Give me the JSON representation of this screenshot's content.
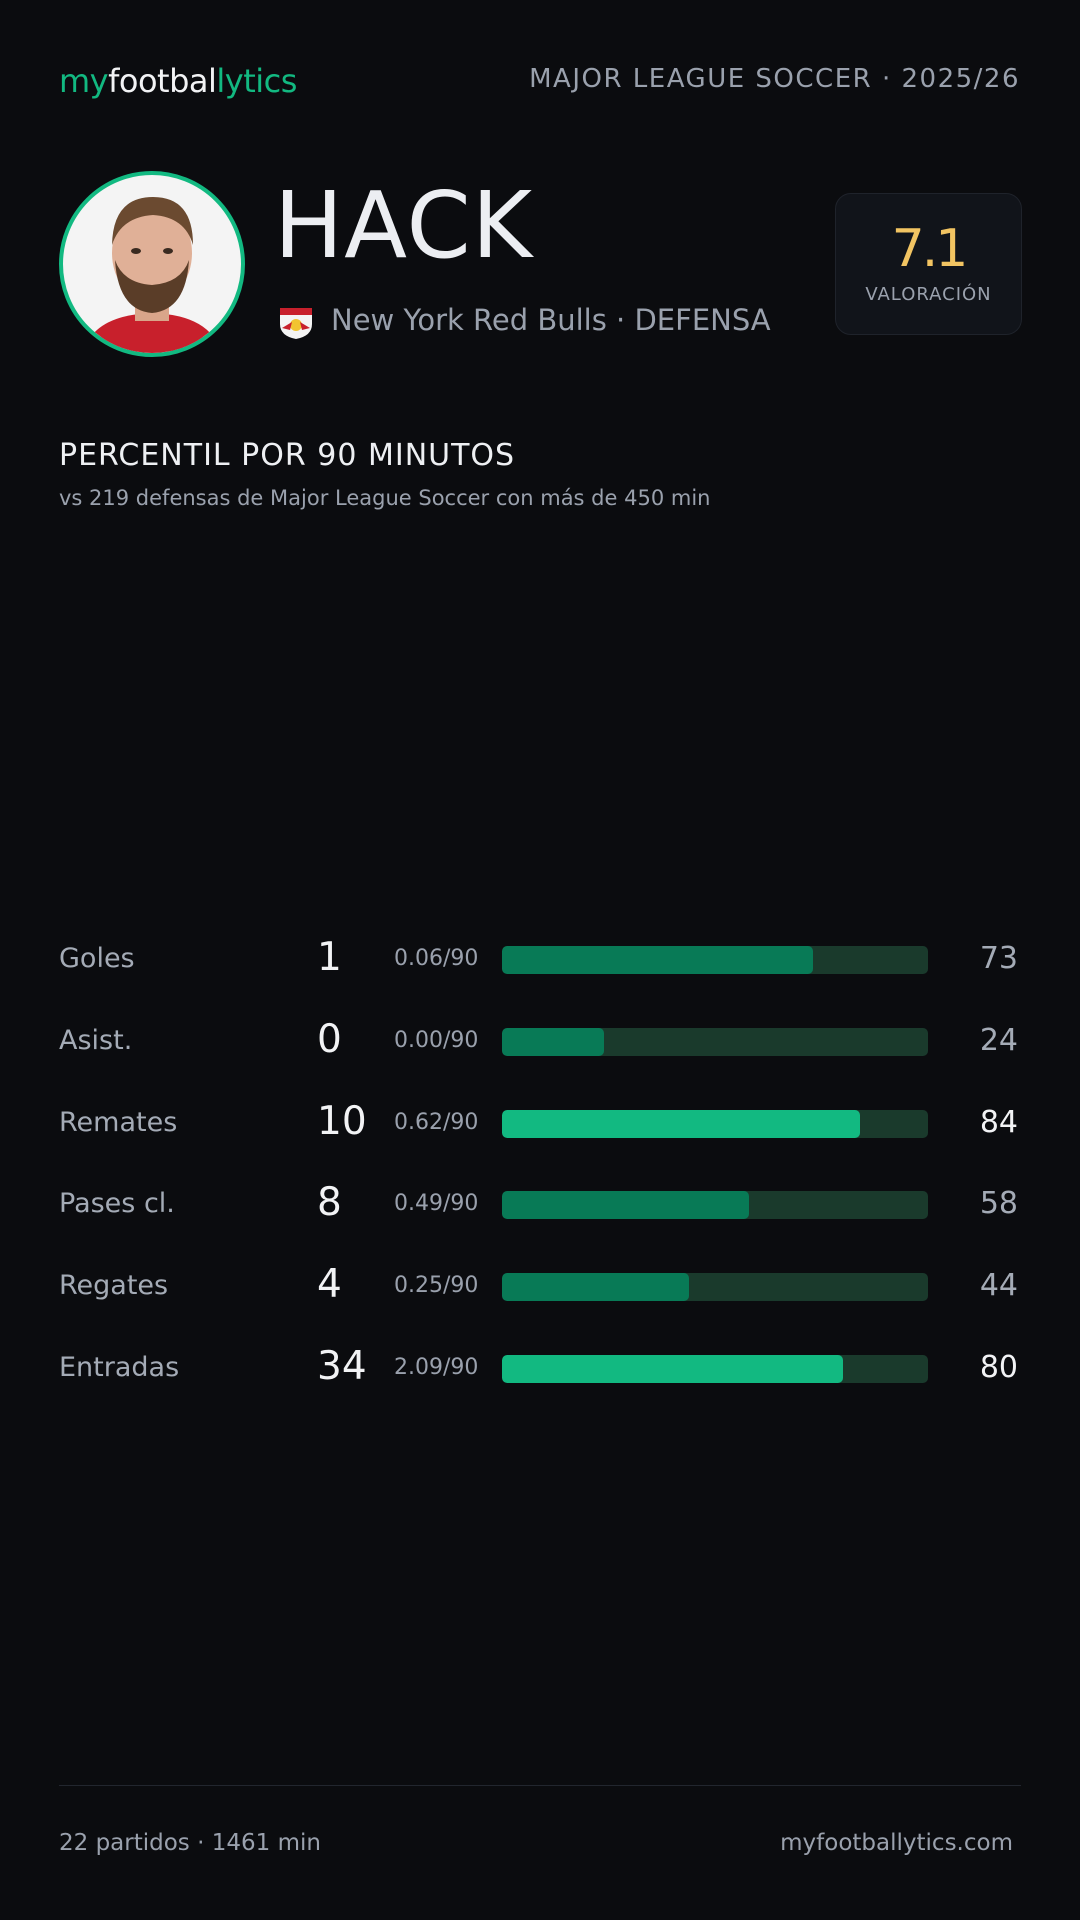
{
  "header": {
    "brand": [
      "my",
      "footbal",
      "lytics"
    ],
    "league": "MAJOR LEAGUE SOCCER · 2025/26"
  },
  "player": {
    "name": "HACK",
    "team": "New York Red Bulls · DEFENSA",
    "rating": "7.1",
    "rating_label": "VALORACIÓN"
  },
  "section": {
    "title": "PERCENTIL POR 90 MINUTOS",
    "subtitle": "vs 219 defensas de Major League Soccer con más de 450 min"
  },
  "stats": {
    "rows": [
      {
        "label": "Goles",
        "total": 1,
        "per90": "0.06/90",
        "percentile": 73,
        "color": "#087a56"
      },
      {
        "label": "Asist.",
        "total": 0,
        "per90": "0.00/90",
        "percentile": 24,
        "color": "#087a56"
      },
      {
        "label": "Remates",
        "total": 10,
        "per90": "0.62/90",
        "percentile": 84,
        "color": "#12b981"
      },
      {
        "label": "Pases cl.",
        "total": 8,
        "per90": "0.49/90",
        "percentile": 58,
        "color": "#087a56"
      },
      {
        "label": "Regates",
        "total": 4,
        "per90": "0.25/90",
        "percentile": 44,
        "color": "#087a56"
      },
      {
        "label": "Entradas",
        "total": 34,
        "per90": "2.09/90",
        "percentile": 80,
        "color": "#12b981"
      }
    ]
  },
  "footer": {
    "left": "22 partidos · 1461 min",
    "right": "myfootballytics.com"
  }
}
